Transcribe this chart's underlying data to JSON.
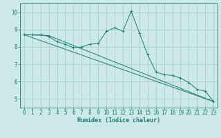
{
  "title": "",
  "xlabel": "Humidex (Indice chaleur)",
  "background_color": "#cce8e8",
  "grid_color": "#aacccc",
  "line_color": "#1a7a6e",
  "xlim": [
    -0.5,
    23.5
  ],
  "ylim": [
    4.5,
    10.5
  ],
  "xticks": [
    0,
    1,
    2,
    3,
    4,
    5,
    6,
    7,
    8,
    9,
    10,
    11,
    12,
    13,
    14,
    15,
    16,
    17,
    18,
    19,
    20,
    21,
    22,
    23
  ],
  "yticks": [
    5,
    6,
    7,
    8,
    9,
    10
  ],
  "line1_x": [
    0,
    1,
    2,
    3,
    4,
    5,
    6,
    7,
    8,
    9,
    10,
    11,
    12,
    13,
    14,
    15,
    16,
    17,
    18,
    19,
    20,
    21,
    22,
    23
  ],
  "line1_y": [
    8.7,
    8.7,
    8.7,
    8.6,
    8.3,
    8.15,
    7.95,
    8.0,
    8.15,
    8.2,
    8.9,
    9.1,
    8.9,
    10.05,
    8.8,
    7.55,
    6.55,
    6.4,
    6.35,
    6.2,
    5.95,
    5.55,
    5.45,
    4.85
  ],
  "line2_x": [
    0,
    3,
    23
  ],
  "line2_y": [
    8.7,
    8.65,
    4.85
  ],
  "line3_x": [
    0,
    23
  ],
  "line3_y": [
    8.7,
    4.85
  ]
}
